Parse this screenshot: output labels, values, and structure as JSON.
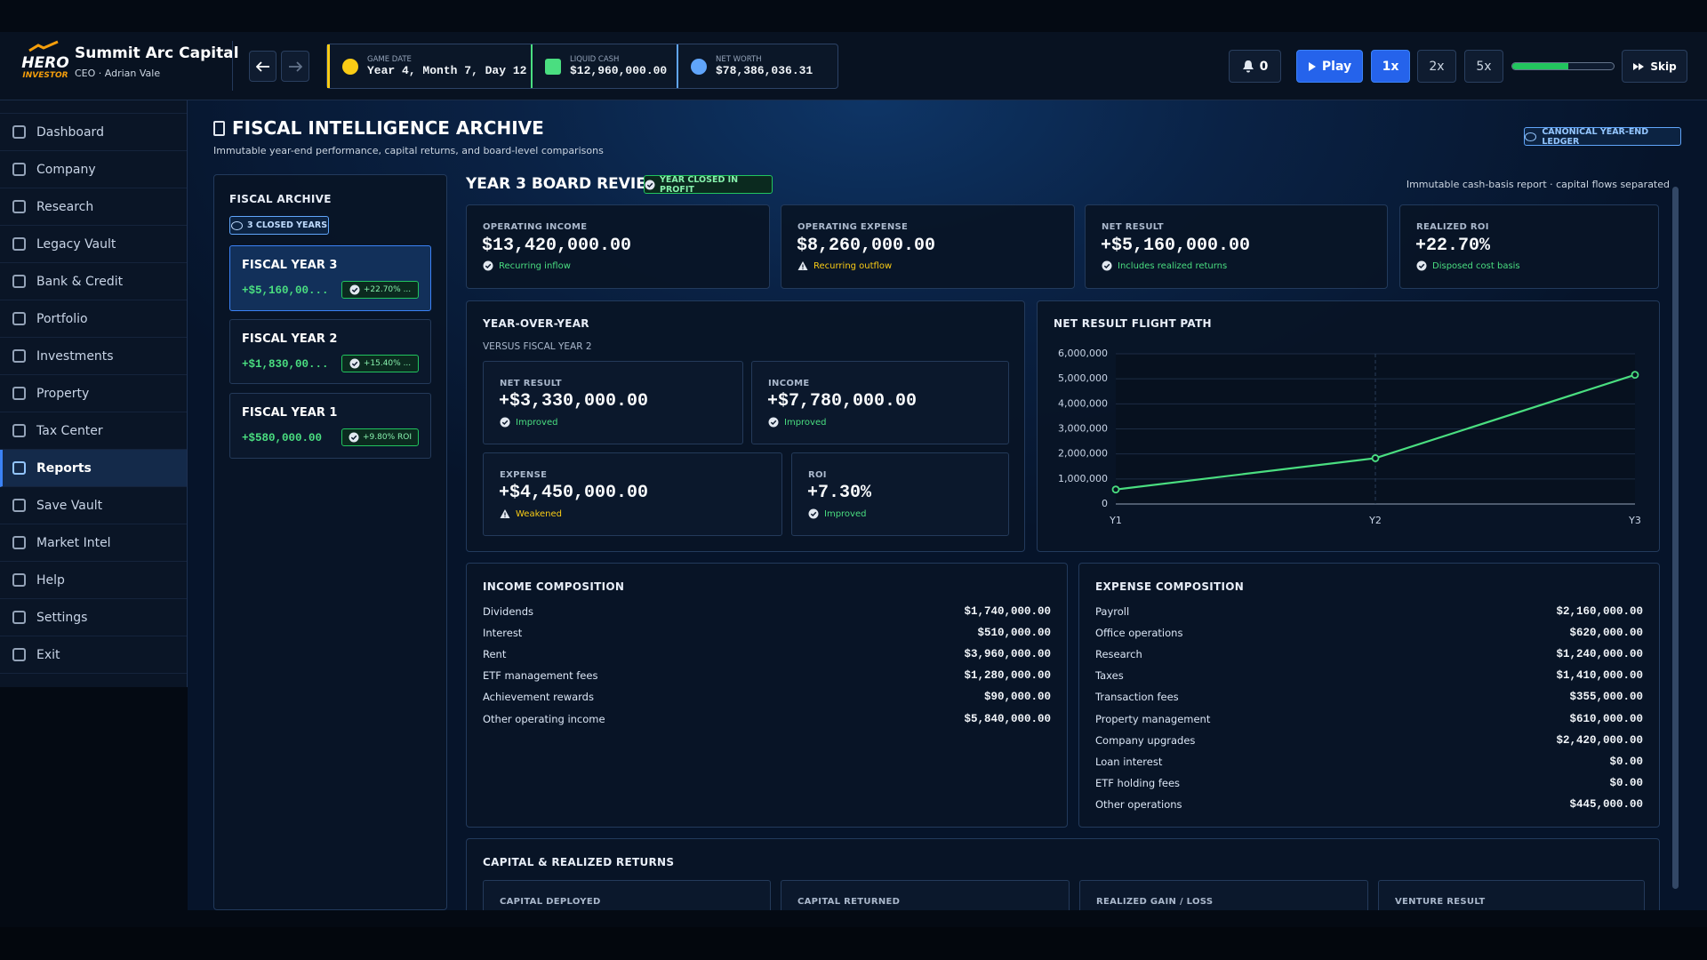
{
  "header": {
    "logo_top": "HERO",
    "logo_bottom": "INVESTOR",
    "company": "Summit Arc Capital",
    "ceo": "CEO · Adrian Vale",
    "stats": [
      {
        "label": "GAME DATE",
        "value": "Year 4, Month 7, Day 12",
        "color": "#facc15"
      },
      {
        "label": "LIQUID CASH",
        "value": "$12,960,000.00",
        "color": "#4ade80"
      },
      {
        "label": "NET WORTH",
        "value": "$78,386,036.31",
        "color": "#60a5fa"
      }
    ],
    "notifications": 0,
    "play": "Play",
    "speeds": [
      {
        "label": "1x",
        "active": true
      },
      {
        "label": "2x",
        "active": false
      },
      {
        "label": "5x",
        "active": false
      }
    ],
    "skip": "Skip"
  },
  "sidebar": [
    {
      "label": "Dashboard",
      "active": false
    },
    {
      "label": "Company",
      "active": false
    },
    {
      "label": "Research",
      "active": false
    },
    {
      "label": "Legacy Vault",
      "active": false
    },
    {
      "label": "Bank & Credit",
      "active": false
    },
    {
      "label": "Portfolio",
      "active": false
    },
    {
      "label": "Investments",
      "active": false
    },
    {
      "label": "Property",
      "active": false
    },
    {
      "label": "Tax Center",
      "active": false
    },
    {
      "label": "Reports",
      "active": true
    },
    {
      "label": "Save Vault",
      "active": false
    },
    {
      "label": "Market Intel",
      "active": false
    },
    {
      "label": "Help",
      "active": false
    },
    {
      "label": "Settings",
      "active": false
    },
    {
      "label": "Exit",
      "active": false
    }
  ],
  "page": {
    "title": "FISCAL INTELLIGENCE ARCHIVE",
    "subtitle": "Immutable year-end performance, capital returns, and board-level comparisons",
    "ledger": "CANONICAL YEAR-END LEDGER"
  },
  "archive": {
    "title": "FISCAL ARCHIVE",
    "badge": "3 CLOSED YEARS",
    "years": [
      {
        "name": "FISCAL YEAR 3",
        "result": "+$5,160,00...",
        "roi": "+22.70% ...",
        "selected": true
      },
      {
        "name": "FISCAL YEAR 2",
        "result": "+$1,830,00...",
        "roi": "+15.40% ...",
        "selected": false
      },
      {
        "name": "FISCAL YEAR 1",
        "result": "+$580,000.00",
        "roi": "+9.80% ROI",
        "selected": false
      }
    ]
  },
  "review": {
    "title": "YEAR 3 BOARD REVIEW",
    "status": "YEAR CLOSED IN PROFIT",
    "note": "Immutable cash-basis report · capital flows separated",
    "kpis": [
      {
        "label": "OPERATING INCOME",
        "value": "$13,420,000.00",
        "note": "Recurring inflow",
        "tone": "good"
      },
      {
        "label": "OPERATING EXPENSE",
        "value": "$8,260,000.00",
        "note": "Recurring outflow",
        "tone": "warn"
      },
      {
        "label": "NET RESULT",
        "value": "+$5,160,000.00",
        "note": "Includes realized returns",
        "tone": "good"
      },
      {
        "label": "REALIZED ROI",
        "value": "+22.70%",
        "note": "Disposed cost basis",
        "tone": "good"
      }
    ]
  },
  "yoy": {
    "title": "YEAR-OVER-YEAR",
    "subtitle": "VERSUS FISCAL YEAR 2",
    "cards": [
      {
        "label": "NET RESULT",
        "value": "+$3,330,000.00",
        "note": "Improved",
        "tone": "good"
      },
      {
        "label": "INCOME",
        "value": "+$7,780,000.00",
        "note": "Improved",
        "tone": "good"
      },
      {
        "label": "EXPENSE",
        "value": "+$4,450,000.00",
        "note": "Weakened",
        "tone": "warn"
      },
      {
        "label": "ROI",
        "value": "+7.30%",
        "note": "Improved",
        "tone": "good"
      }
    ]
  },
  "chart_data": {
    "type": "line",
    "title": "NET RESULT FLIGHT PATH",
    "categories": [
      "Y1",
      "Y2",
      "Y3"
    ],
    "values": [
      580000,
      1830000,
      5160000
    ],
    "color": "#4ade80",
    "ylim": [
      0,
      6000000
    ],
    "yticks": [
      0,
      {
        "value": 1000000,
        "label": "1,000,000"
      },
      {
        "value": 2000000,
        "label": "2,000,000"
      },
      {
        "value": 3000000,
        "label": "3,000,000"
      },
      {
        "value": 4000000,
        "label": "4,000,000"
      },
      {
        "value": 5000000,
        "label": "5,000,000"
      },
      {
        "value": 6000000,
        "label": "6,000,000"
      }
    ],
    "grid": true
  },
  "income": {
    "title": "INCOME COMPOSITION",
    "rows": [
      {
        "label": "Dividends",
        "value": "$1,740,000.00"
      },
      {
        "label": "Interest",
        "value": "$510,000.00"
      },
      {
        "label": "Rent",
        "value": "$3,960,000.00"
      },
      {
        "label": "ETF management fees",
        "value": "$1,280,000.00"
      },
      {
        "label": "Achievement rewards",
        "value": "$90,000.00"
      },
      {
        "label": "Other operating income",
        "value": "$5,840,000.00"
      }
    ]
  },
  "expense": {
    "title": "EXPENSE COMPOSITION",
    "rows": [
      {
        "label": "Payroll",
        "value": "$2,160,000.00"
      },
      {
        "label": "Office operations",
        "value": "$620,000.00"
      },
      {
        "label": "Research",
        "value": "$1,240,000.00"
      },
      {
        "label": "Taxes",
        "value": "$1,410,000.00"
      },
      {
        "label": "Transaction fees",
        "value": "$355,000.00"
      },
      {
        "label": "Property management",
        "value": "$610,000.00"
      },
      {
        "label": "Company upgrades",
        "value": "$2,420,000.00"
      },
      {
        "label": "Loan interest",
        "value": "$0.00"
      },
      {
        "label": "ETF holding fees",
        "value": "$0.00"
      },
      {
        "label": "Other operations",
        "value": "$445,000.00"
      }
    ]
  },
  "capital": {
    "title": "CAPITAL & REALIZED RETURNS",
    "cards": [
      "CAPITAL DEPLOYED",
      "CAPITAL RETURNED",
      "REALIZED GAIN / LOSS",
      "VENTURE RESULT"
    ]
  }
}
